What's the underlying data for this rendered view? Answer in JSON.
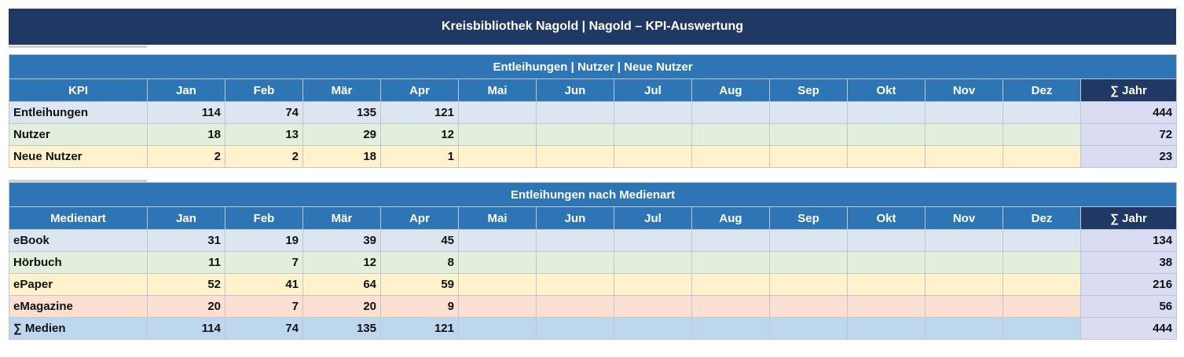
{
  "title": "Kreisbibliothek Nagold  |  Nagold – KPI-Auswertung",
  "months": [
    "Jan",
    "Feb",
    "Mär",
    "Apr",
    "Mai",
    "Jun",
    "Jul",
    "Aug",
    "Sep",
    "Okt",
    "Nov",
    "Dez"
  ],
  "sum_label": "∑ Jahr",
  "kpi_table": {
    "section_title": "Entleihungen | Nutzer | Neue Nutzer",
    "first_col_label": "KPI",
    "rows": [
      {
        "label": "Entleihungen",
        "values": [
          "114",
          "74",
          "135",
          "121",
          "",
          "",
          "",
          "",
          "",
          "",
          "",
          ""
        ],
        "total": "444"
      },
      {
        "label": "Nutzer",
        "values": [
          "18",
          "13",
          "29",
          "12",
          "",
          "",
          "",
          "",
          "",
          "",
          "",
          ""
        ],
        "total": "72"
      },
      {
        "label": "Neue Nutzer",
        "values": [
          "2",
          "2",
          "18",
          "1",
          "",
          "",
          "",
          "",
          "",
          "",
          "",
          ""
        ],
        "total": "23"
      }
    ]
  },
  "media_table": {
    "section_title": "Entleihungen nach Medienart",
    "first_col_label": "Medienart",
    "rows": [
      {
        "label": "eBook",
        "values": [
          "31",
          "19",
          "39",
          "45",
          "",
          "",
          "",
          "",
          "",
          "",
          "",
          ""
        ],
        "total": "134"
      },
      {
        "label": "Hörbuch",
        "values": [
          "11",
          "7",
          "12",
          "8",
          "",
          "",
          "",
          "",
          "",
          "",
          "",
          ""
        ],
        "total": "38"
      },
      {
        "label": "ePaper",
        "values": [
          "52",
          "41",
          "64",
          "59",
          "",
          "",
          "",
          "",
          "",
          "",
          "",
          ""
        ],
        "total": "216"
      },
      {
        "label": "eMagazine",
        "values": [
          "20",
          "7",
          "20",
          "9",
          "",
          "",
          "",
          "",
          "",
          "",
          "",
          ""
        ],
        "total": "56"
      },
      {
        "label": "∑ Medien",
        "values": [
          "114",
          "74",
          "135",
          "121",
          "",
          "",
          "",
          "",
          "",
          "",
          "",
          ""
        ],
        "total": "444"
      }
    ]
  }
}
